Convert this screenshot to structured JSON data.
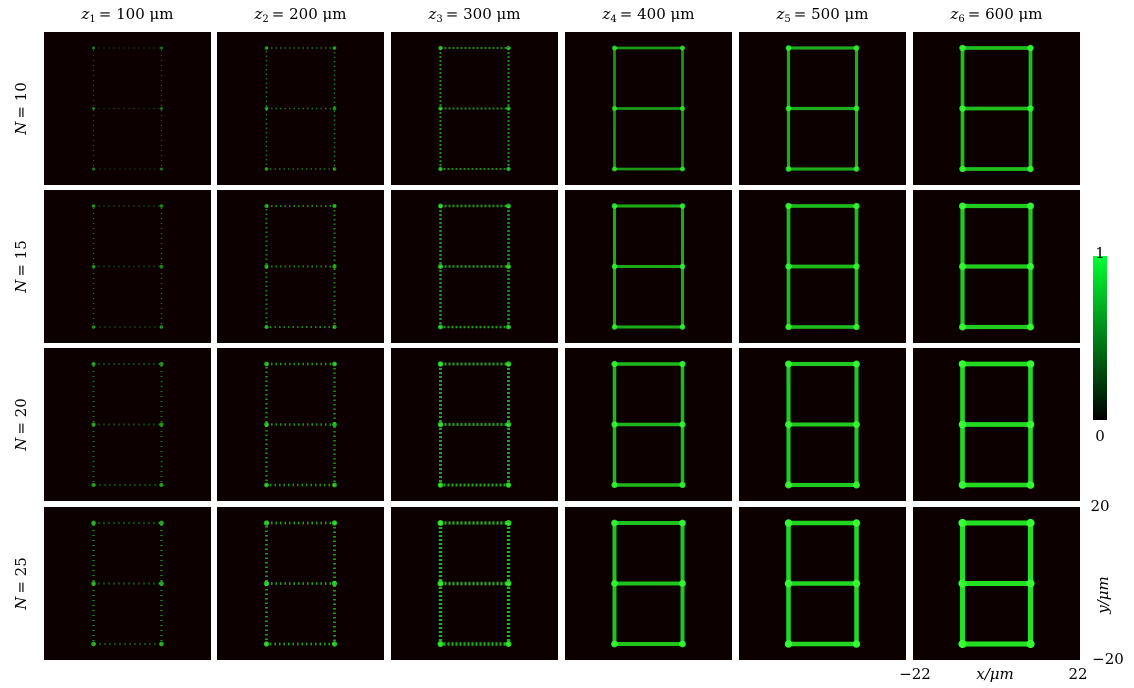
{
  "columns": [
    {
      "symbol": "z",
      "index": "1",
      "text": "= 100 μm"
    },
    {
      "symbol": "z",
      "index": "2",
      "text": "= 200 μm"
    },
    {
      "symbol": "z",
      "index": "3",
      "text": "= 300 μm"
    },
    {
      "symbol": "z",
      "index": "4",
      "text": "= 400 μm"
    },
    {
      "symbol": "z",
      "index": "5",
      "text": "= 500 μm"
    },
    {
      "symbol": "z",
      "index": "6",
      "text": "= 600 μm"
    }
  ],
  "rows": [
    {
      "symbol": "N",
      "text": "= 10"
    },
    {
      "symbol": "N",
      "text": "= 15"
    },
    {
      "symbol": "N",
      "text": "= 20"
    },
    {
      "symbol": "N",
      "text": "= 25"
    }
  ],
  "colorbar": {
    "max": "1",
    "min": "0"
  },
  "y_axis": {
    "top": "20",
    "label": "y/μm",
    "bottom": "−20"
  },
  "x_axis": {
    "left": "−22",
    "label": "x/μm",
    "right": "22"
  }
}
